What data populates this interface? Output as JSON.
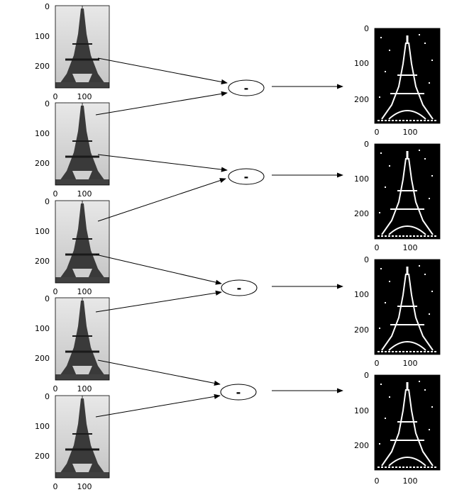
{
  "operator_symbol": "-",
  "input_panels": [
    {
      "id": "in-1",
      "yticks": [
        "0",
        "100",
        "200"
      ],
      "xticks": [
        "0",
        "100"
      ]
    },
    {
      "id": "in-2",
      "yticks": [
        "0",
        "100",
        "200"
      ],
      "xticks": [
        "0",
        "100"
      ]
    },
    {
      "id": "in-3",
      "yticks": [
        "0",
        "100",
        "200"
      ],
      "xticks": [
        "0",
        "100"
      ]
    },
    {
      "id": "in-4",
      "yticks": [
        "0",
        "100",
        "200"
      ],
      "xticks": [
        "0",
        "100"
      ]
    },
    {
      "id": "in-5",
      "yticks": [
        "0",
        "100",
        "200"
      ],
      "xticks": [
        "0",
        "100"
      ]
    }
  ],
  "output_panels": [
    {
      "id": "out-1",
      "yticks": [
        "0",
        "100",
        "200"
      ],
      "xticks": [
        "0",
        "100"
      ]
    },
    {
      "id": "out-2",
      "yticks": [
        "0",
        "100",
        "200"
      ],
      "xticks": [
        "0",
        "100"
      ]
    },
    {
      "id": "out-3",
      "yticks": [
        "0",
        "100",
        "200"
      ],
      "xticks": [
        "0",
        "100"
      ]
    },
    {
      "id": "out-4",
      "yticks": [
        "0",
        "100",
        "200"
      ],
      "xticks": [
        "0",
        "100"
      ]
    }
  ],
  "colors": {
    "photo_sky": "#d8d8d8",
    "photo_tower": "#2e2e2e",
    "edge_bg": "#000000",
    "edge_fg": "#ffffff"
  }
}
